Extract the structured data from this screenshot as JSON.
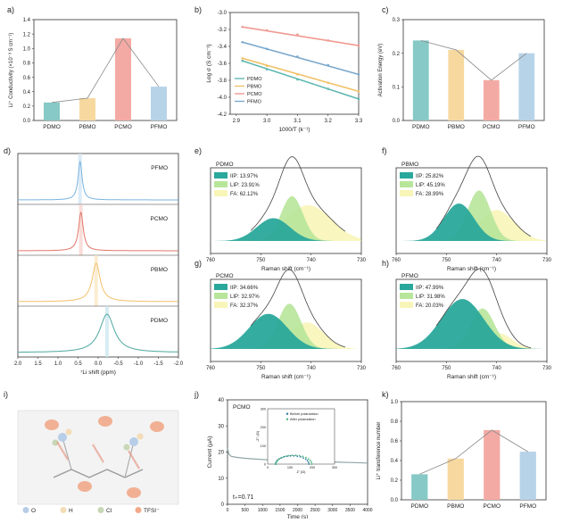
{
  "colors": {
    "PDMO": "#86c9c6",
    "PBMO": "#f7d9a0",
    "PCMO": "#f4aaa4",
    "PFMO": "#b7d3e8",
    "axis": "#333333",
    "trend": "#8a8a8a",
    "iip": "#2aa89b",
    "lip": "#b7e69a",
    "fa": "#f8f5b8",
    "envelope": "#444444"
  },
  "panels": [
    {
      "key": "a",
      "label": "a)"
    },
    {
      "key": "b",
      "label": "b)"
    },
    {
      "key": "c",
      "label": "c)"
    },
    {
      "key": "d",
      "label": "d)"
    },
    {
      "key": "e",
      "label": "e)"
    },
    {
      "key": "f",
      "label": "f)"
    },
    {
      "key": "g",
      "label": "g)"
    },
    {
      "key": "h",
      "label": "h)"
    },
    {
      "key": "i",
      "label": "i)"
    },
    {
      "key": "j",
      "label": "j)"
    },
    {
      "key": "k",
      "label": "k)"
    }
  ],
  "chart_data": [
    {
      "id": "a",
      "type": "bar",
      "categories": [
        "PDMO",
        "PBMO",
        "PCMO",
        "PFMO"
      ],
      "values": [
        0.25,
        0.31,
        1.14,
        0.47
      ],
      "ylabel": "Li⁺ Conductivity (×10⁻³ S cm⁻¹)",
      "ylim": [
        0,
        1.4
      ],
      "yticks": [
        0.0,
        0.2,
        0.4,
        0.6,
        0.8,
        1.0,
        1.2,
        1.4
      ],
      "trend_line": true
    },
    {
      "id": "b",
      "type": "scatter",
      "xlabel": "1000/T (k⁻¹)",
      "ylabel": "Log σ (S cm⁻¹)",
      "xlim": [
        2.88,
        3.3
      ],
      "ylim": [
        -4.2,
        -3.0
      ],
      "xticks": [
        2.9,
        3.0,
        3.1,
        3.2,
        3.3
      ],
      "yticks": [
        -4.2,
        -4.0,
        -3.8,
        -3.6,
        -3.4,
        -3.2,
        -3.0
      ],
      "legend_position": "bottom-left",
      "series": [
        {
          "name": "PDMO",
          "x": [
            2.92,
            3.0,
            3.1,
            3.2,
            3.3
          ],
          "y": [
            -3.57,
            -3.67,
            -3.79,
            -3.9,
            -4.02
          ]
        },
        {
          "name": "PBMO",
          "x": [
            2.92,
            3.0,
            3.1,
            3.2,
            3.3
          ],
          "y": [
            -3.54,
            -3.63,
            -3.73,
            -3.83,
            -3.93
          ]
        },
        {
          "name": "PCMO",
          "x": [
            2.92,
            3.0,
            3.1,
            3.2,
            3.3
          ],
          "y": [
            -3.17,
            -3.21,
            -3.26,
            -3.33,
            -3.39
          ]
        },
        {
          "name": "PFMO",
          "x": [
            2.92,
            3.0,
            3.1,
            3.2,
            3.3
          ],
          "y": [
            -3.35,
            -3.43,
            -3.52,
            -3.62,
            -3.73
          ]
        }
      ]
    },
    {
      "id": "c",
      "type": "bar",
      "categories": [
        "PDMO",
        "PBMO",
        "PCMO",
        "PFMO"
      ],
      "values": [
        0.238,
        0.21,
        0.12,
        0.2
      ],
      "ylabel": "Activation Energy (eV)",
      "ylim": [
        0,
        0.3
      ],
      "yticks": [
        0.0,
        0.1,
        0.2,
        0.3
      ],
      "trend_line": true
    },
    {
      "id": "d",
      "type": "line",
      "xlabel": "⁷Li shift (ppm)",
      "xlim": [
        2.0,
        -2.0
      ],
      "xticks": [
        2.0,
        1.5,
        1.0,
        0.5,
        0.0,
        -0.5,
        -1.0,
        -1.5,
        -2.0
      ],
      "series": [
        {
          "name": "PFMO",
          "peak": 0.45,
          "width": 0.06
        },
        {
          "name": "PCMO",
          "peak": 0.43,
          "width": 0.07
        },
        {
          "name": "PBMO",
          "peak": 0.05,
          "width": 0.12
        },
        {
          "name": "PDMO",
          "peak": -0.22,
          "width": 0.22
        }
      ]
    },
    {
      "id": "e",
      "type": "area",
      "title": "PDMO",
      "xlabel": "Raman shift (cm⁻¹)",
      "xlim": [
        760,
        730
      ],
      "xticks": [
        760,
        750,
        740,
        730
      ],
      "components": [
        {
          "name": "IIP",
          "percent": "13.97%",
          "center": 747.5,
          "width": 3.3,
          "height": 0.28
        },
        {
          "name": "LIP",
          "percent": "23.91%",
          "center": 743.8,
          "width": 2.2,
          "height": 0.55
        },
        {
          "name": "FA",
          "percent": "62.12%",
          "center": 740.5,
          "width": 4.5,
          "height": 0.44
        }
      ]
    },
    {
      "id": "f",
      "type": "area",
      "title": "PBMO",
      "xlabel": "Raman shift (cm⁻¹)",
      "xlim": [
        760,
        730
      ],
      "xticks": [
        760,
        750,
        740,
        730
      ],
      "components": [
        {
          "name": "IIP",
          "percent": "25.82%",
          "center": 747.5,
          "width": 3.0,
          "height": 0.46
        },
        {
          "name": "LIP",
          "percent": "45.19%",
          "center": 743.5,
          "width": 2.3,
          "height": 0.62
        },
        {
          "name": "FA",
          "percent": "28.99%",
          "center": 740.0,
          "width": 3.5,
          "height": 0.38
        }
      ]
    },
    {
      "id": "g",
      "type": "area",
      "title": "PCMO",
      "xlabel": "Raman shift (cm⁻¹)",
      "xlim": [
        760,
        730
      ],
      "xticks": [
        760,
        750,
        740,
        730
      ],
      "components": [
        {
          "name": "IIP",
          "percent": "34.66%",
          "center": 748.5,
          "width": 3.8,
          "height": 0.45
        },
        {
          "name": "LIP",
          "percent": "32.97%",
          "center": 744.3,
          "width": 2.3,
          "height": 0.58
        },
        {
          "name": "FA",
          "percent": "32.37%",
          "center": 740.8,
          "width": 3.3,
          "height": 0.34
        }
      ]
    },
    {
      "id": "h",
      "type": "area",
      "title": "PFMO",
      "xlabel": "Raman shift (cm⁻¹)",
      "xlim": [
        760,
        730
      ],
      "xticks": [
        760,
        750,
        740,
        730
      ],
      "components": [
        {
          "name": "IIP",
          "percent": "47.99%",
          "center": 746.8,
          "width": 4.2,
          "height": 0.64
        },
        {
          "name": "LIP",
          "percent": "31.98%",
          "center": 742.8,
          "width": 2.4,
          "height": 0.52
        },
        {
          "name": "FA",
          "percent": "20.03%",
          "center": 739.5,
          "width": 2.6,
          "height": 0.2
        }
      ]
    },
    {
      "id": "j",
      "type": "line",
      "title": "PCMO",
      "xlabel": "Time (s)",
      "ylabel": "Current (μA)",
      "xlim": [
        0,
        4000
      ],
      "ylim": [
        0,
        40
      ],
      "xticks": [
        0,
        500,
        1000,
        1500,
        2000,
        2500,
        3000,
        3500,
        4000
      ],
      "yticks": [
        0,
        10,
        20,
        30,
        40
      ],
      "series": [
        {
          "x": [
            0,
            40,
            100,
            250,
            500,
            800,
            1200,
            1600,
            2000,
            2500,
            3000,
            3500,
            4000
          ],
          "y": [
            21.5,
            19.2,
            18.4,
            18.0,
            17.6,
            17.3,
            17.0,
            16.8,
            16.6,
            16.4,
            16.2,
            16.0,
            15.8
          ]
        }
      ],
      "annotation": "t₊=0.71",
      "inset": {
        "xlabel": "Z' (Ω)",
        "ylabel": "-Z'' (Ω)",
        "xlim": [
          0,
          300
        ],
        "ylim": [
          0,
          300
        ],
        "xticks": [
          0,
          100,
          200,
          300
        ],
        "yticks": [
          0,
          100,
          200,
          300
        ],
        "series": [
          {
            "name": "Before polarization",
            "center": 110,
            "radius": 75
          },
          {
            "name": "After polarization",
            "center": 118,
            "radius": 80
          }
        ]
      }
    },
    {
      "id": "k",
      "type": "bar",
      "categories": [
        "PDMO",
        "PBMO",
        "PCMO",
        "PFMO"
      ],
      "values": [
        0.26,
        0.42,
        0.71,
        0.49
      ],
      "ylabel": "Li⁺ transference number",
      "ylim": [
        0,
        1.0
      ],
      "yticks": [
        0.0,
        0.2,
        0.4,
        0.6,
        0.8,
        1.0
      ],
      "trend_line": true
    }
  ],
  "schematic": {
    "legend": [
      {
        "label": "O",
        "color": "#b7cde8"
      },
      {
        "label": "H",
        "color": "#f3dcb6"
      },
      {
        "label": "Cl",
        "color": "#c8d7b6"
      },
      {
        "label": "TFSI⁻",
        "color": "#f1a98a"
      }
    ]
  }
}
